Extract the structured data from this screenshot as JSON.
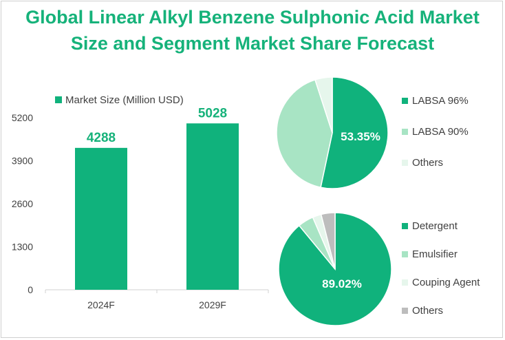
{
  "title_line1": "Global Linear Alkyl Benzene Sulphonic Acid Market",
  "title_line2": "Size and Segment Market Share Forecast",
  "colors": {
    "bar": "#10b27c",
    "title": "#16b27a",
    "pie_primary": "#10b27c",
    "pie_secondary": "#a8e4c4",
    "pie_tertiary": "#e6f6ec",
    "pie_gray": "#bdbdbd"
  },
  "chart_data": [
    {
      "type": "bar",
      "legend": "Market Size (Million USD)",
      "categories": [
        "2024F",
        "2029F"
      ],
      "values": [
        4288,
        5028
      ],
      "data_labels": [
        "4288",
        "5028"
      ],
      "y_ticks": [
        "0",
        "1300",
        "2600",
        "3900",
        "5200"
      ],
      "ylim": [
        0,
        5200
      ],
      "legend_position": "top-left",
      "grid": false
    },
    {
      "type": "pie",
      "slices": [
        {
          "name": "LABSA 96%",
          "value": 53.35
        },
        {
          "name": "LABSA 90%",
          "value": 41.65
        },
        {
          "name": "Others",
          "value": 5.0
        }
      ],
      "label": "53.35%",
      "legend_position": "right"
    },
    {
      "type": "pie",
      "slices": [
        {
          "name": "Detergent",
          "value": 89.02
        },
        {
          "name": "Emulsifier",
          "value": 4.5
        },
        {
          "name": "Couping Agent",
          "value": 2.5
        },
        {
          "name": "Others",
          "value": 3.98
        }
      ],
      "label": "89.02%",
      "legend_position": "right"
    }
  ]
}
